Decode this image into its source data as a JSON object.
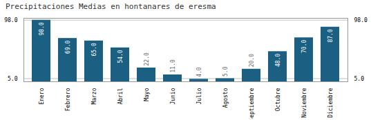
{
  "chart_data": {
    "type": "bar",
    "title": "Precipitaciones Medias en hontanares de eresma",
    "categories": [
      "Enero",
      "Febrero",
      "Marzo",
      "Abril",
      "Mayo",
      "Junio",
      "Julio",
      "Agosto",
      "Septiembre",
      "Octubre",
      "Noviembre",
      "Diciembre"
    ],
    "values": [
      98.0,
      69.0,
      65.0,
      54.0,
      22.0,
      11.0,
      4.0,
      5.0,
      20.0,
      48.0,
      70.0,
      87.0
    ],
    "value_labels": [
      "98.0",
      "69.0",
      "65.0",
      "54.0",
      "22.0",
      "11.0",
      "4.0",
      "5.0",
      "20.0",
      "48.0",
      "70.0",
      "87.0"
    ],
    "color": "#1b5f82",
    "ylim": [
      0,
      101
    ],
    "yticks": [
      {
        "value": 5,
        "label": "5.0"
      },
      {
        "value": 98,
        "label": "98.0"
      }
    ],
    "grid": true,
    "data_labels": true
  }
}
